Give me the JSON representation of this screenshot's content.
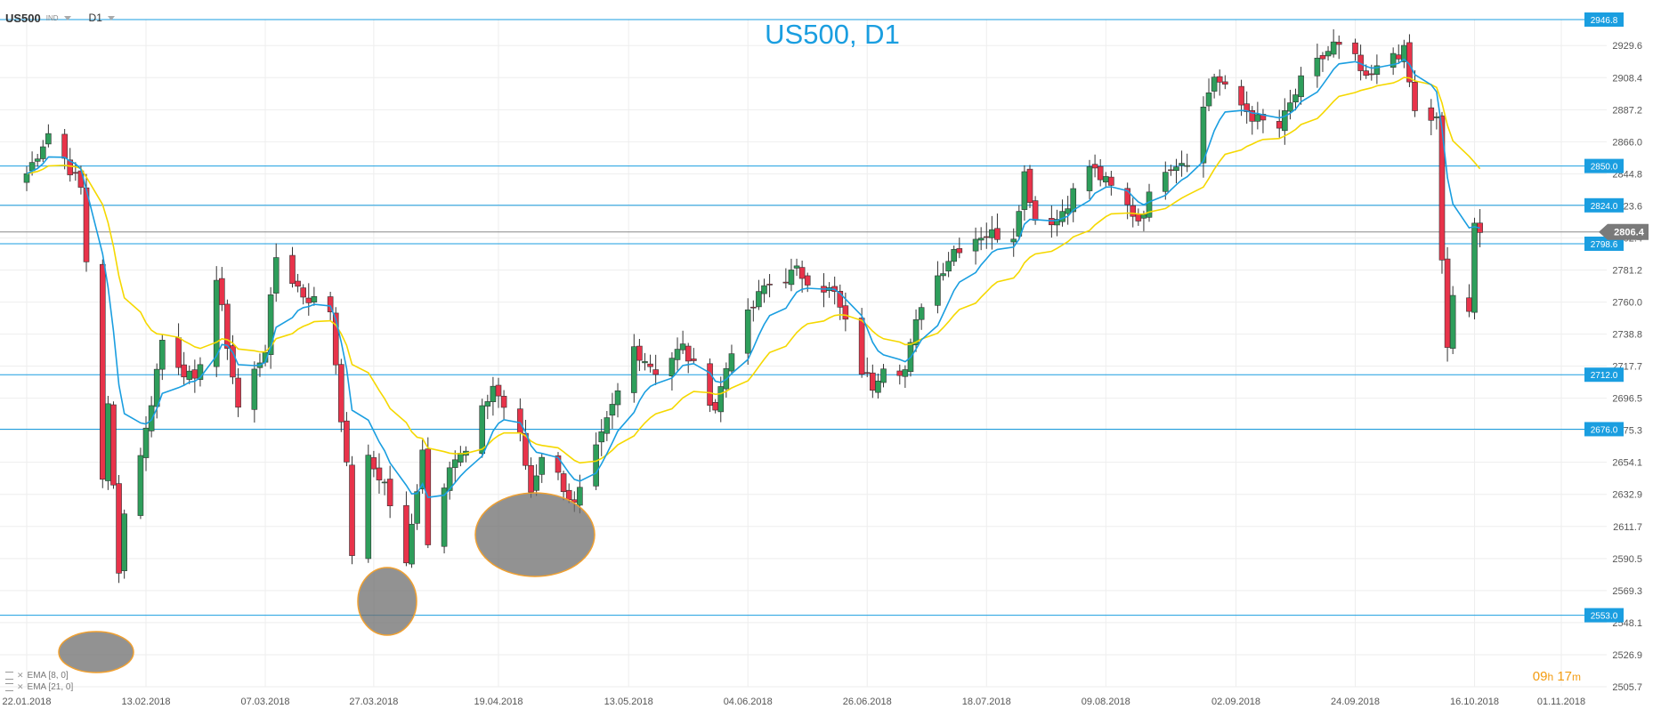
{
  "toolbar": {
    "symbol": "US500",
    "symbol_tag": "IND",
    "timeframe": "D1"
  },
  "indicators": [
    {
      "label": "EMA [8, 0]",
      "color": "#1a9ee0"
    },
    {
      "label": "EMA [21, 0]",
      "color": "#f5d800"
    }
  ],
  "timer": {
    "hours": "09",
    "h_unit": "h",
    "minutes": "17",
    "m_unit": "m"
  },
  "chart_data": {
    "type": "candlestick",
    "title": "US500, D1",
    "ylim": [
      2505.7,
      2946.8
    ],
    "y_ticks": [
      2505.7,
      2526.9,
      2548.1,
      2569.3,
      2590.5,
      2611.7,
      2632.9,
      2654.1,
      2675.3,
      2696.5,
      2717.7,
      2738.8,
      2760.0,
      2781.2,
      2802.4,
      2823.6,
      2844.8,
      2866.0,
      2887.2,
      2908.4,
      2929.6
    ],
    "x_labels": [
      "22.01.2018",
      "13.02.2018",
      "07.03.2018",
      "27.03.2018",
      "19.04.2018",
      "13.05.2018",
      "04.06.2018",
      "26.06.2018",
      "18.07.2018",
      "09.08.2018",
      "02.09.2018",
      "24.09.2018",
      "16.10.2018",
      "01.11.2018"
    ],
    "current_price": "2806.4",
    "levels": [
      {
        "label": "2946.8",
        "value": 2946.8,
        "color": "#1a9ee0"
      },
      {
        "label": "2850.0",
        "value": 2850.0,
        "color": "#1a9ee0"
      },
      {
        "label": "2824.0",
        "value": 2824.0,
        "color": "#1a9ee0"
      },
      {
        "label": "2798.6",
        "value": 2798.6,
        "color": "#1a9ee0"
      },
      {
        "label": "2712.0",
        "value": 2712.0,
        "color": "#1a9ee0"
      },
      {
        "label": "2676.0",
        "value": 2676.0,
        "color": "#1a9ee0"
      },
      {
        "label": "2553.0",
        "value": 2553.0,
        "color": "#1a9ee0"
      }
    ],
    "colors": {
      "up": "#2e9e5b",
      "down": "#e8334a",
      "ema8": "#1a9ee0",
      "ema21": "#f5d800"
    },
    "anchors": [
      [
        "22.01.2018",
        2845
      ],
      [
        "26.01.2018",
        2872
      ],
      [
        "29.01.2018",
        2855
      ],
      [
        "01.02.2018",
        2835
      ],
      [
        "05.02.2018",
        2645
      ],
      [
        "06.02.2018",
        2690
      ],
      [
        "08.02.2018",
        2585
      ],
      [
        "09.02.2018",
        2620
      ],
      [
        "13.02.2018",
        2675
      ],
      [
        "16.02.2018",
        2735
      ],
      [
        "20.02.2018",
        2715
      ],
      [
        "22.02.2018",
        2705
      ],
      [
        "26.02.2018",
        2775
      ],
      [
        "02.03.2018",
        2690
      ],
      [
        "07.03.2018",
        2730
      ],
      [
        "09.03.2018",
        2790
      ],
      [
        "14.03.2018",
        2765
      ],
      [
        "19.03.2018",
        2755
      ],
      [
        "22.03.2018",
        2650
      ],
      [
        "23.03.2018",
        2595
      ],
      [
        "26.03.2018",
        2655
      ],
      [
        "29.03.2018",
        2640
      ],
      [
        "02.04.2018",
        2585
      ],
      [
        "05.04.2018",
        2665
      ],
      [
        "06.04.2018",
        2600
      ],
      [
        "10.04.2018",
        2655
      ],
      [
        "13.04.2018",
        2660
      ],
      [
        "18.04.2018",
        2705
      ],
      [
        "23.04.2018",
        2670
      ],
      [
        "25.04.2018",
        2635
      ],
      [
        "27.04.2018",
        2660
      ],
      [
        "30.04.2018",
        2645
      ],
      [
        "03.05.2018",
        2625
      ],
      [
        "08.05.2018",
        2670
      ],
      [
        "14.05.2018",
        2730
      ],
      [
        "18.05.2018",
        2715
      ],
      [
        "23.05.2018",
        2730
      ],
      [
        "29.05.2018",
        2690
      ],
      [
        "01.06.2018",
        2730
      ],
      [
        "07.06.2018",
        2770
      ],
      [
        "13.06.2018",
        2780
      ],
      [
        "18.06.2018",
        2770
      ],
      [
        "20.06.2018",
        2765
      ],
      [
        "25.06.2018",
        2715
      ],
      [
        "27.06.2018",
        2705
      ],
      [
        "29.06.2018",
        2720
      ],
      [
        "03.07.2018",
        2715
      ],
      [
        "06.07.2018",
        2760
      ],
      [
        "12.07.2018",
        2795
      ],
      [
        "17.07.2018",
        2805
      ],
      [
        "23.07.2018",
        2805
      ],
      [
        "25.07.2018",
        2845
      ],
      [
        "27.07.2018",
        2815
      ],
      [
        "31.07.2018",
        2815
      ],
      [
        "06.08.2018",
        2850
      ],
      [
        "10.08.2018",
        2835
      ],
      [
        "15.08.2018",
        2815
      ],
      [
        "20.08.2018",
        2850
      ],
      [
        "24.08.2018",
        2855
      ],
      [
        "29.08.2018",
        2910
      ],
      [
        "31.08.2018",
        2900
      ],
      [
        "06.09.2018",
        2880
      ],
      [
        "10.09.2018",
        2875
      ],
      [
        "14.09.2018",
        2905
      ],
      [
        "20.09.2018",
        2930
      ],
      [
        "24.09.2018",
        2920
      ],
      [
        "26.09.2018",
        2905
      ],
      [
        "01.10.2018",
        2925
      ],
      [
        "03.10.2018",
        2925
      ],
      [
        "05.10.2018",
        2885
      ],
      [
        "09.10.2018",
        2880
      ],
      [
        "10.10.2018",
        2785
      ],
      [
        "11.10.2018",
        2730
      ],
      [
        "12.10.2018",
        2765
      ],
      [
        "15.10.2018",
        2750
      ],
      [
        "16.10.2018",
        2810
      ],
      [
        "17.10.2018",
        2806
      ]
    ]
  },
  "annotations": [
    {
      "name": "low-highlight-feb"
    },
    {
      "name": "low-highlight-apr"
    },
    {
      "name": "low-highlight-may"
    }
  ]
}
